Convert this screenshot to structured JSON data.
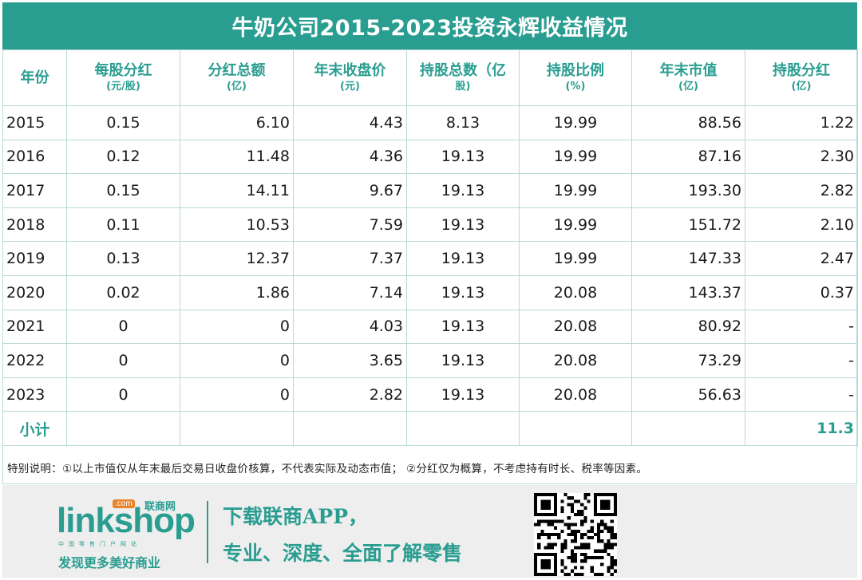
{
  "title": "牛奶公司2015-2023投资永辉收益情况",
  "headers": [
    {
      "main": "年份",
      "unit": ""
    },
    {
      "main": "每股分红",
      "unit": "(元/股)"
    },
    {
      "main": "分红总额",
      "unit": "(亿)"
    },
    {
      "main": "年末收盘价",
      "unit": "(元)"
    },
    {
      "main": "持股总数（亿",
      "unit": "股)"
    },
    {
      "main": "持股比例",
      "unit": "(%)"
    },
    {
      "main": "年末市值",
      "unit": "(亿)"
    },
    {
      "main": "持股分红",
      "unit": "(亿)"
    }
  ],
  "rows": [
    [
      "2015",
      "0.15",
      "6.10",
      "4.43",
      "8.13",
      "19.99",
      "88.56",
      "1.22"
    ],
    [
      "2016",
      "0.12",
      "11.48",
      "4.36",
      "19.13",
      "19.99",
      "87.16",
      "2.30"
    ],
    [
      "2017",
      "0.15",
      "14.11",
      "9.67",
      "19.13",
      "19.99",
      "193.30",
      "2.82"
    ],
    [
      "2018",
      "0.11",
      "10.53",
      "7.59",
      "19.13",
      "19.99",
      "151.72",
      "2.10"
    ],
    [
      "2019",
      "0.13",
      "12.37",
      "7.37",
      "19.13",
      "19.99",
      "147.33",
      "2.47"
    ],
    [
      "2020",
      "0.02",
      "1.86",
      "7.14",
      "19.13",
      "20.08",
      "143.37",
      "0.37"
    ],
    [
      "2021",
      "0",
      "0",
      "4.03",
      "19.13",
      "20.08",
      "80.92",
      "-"
    ],
    [
      "2022",
      "0",
      "0",
      "3.65",
      "19.13",
      "20.08",
      "73.29",
      "-"
    ],
    [
      "2023",
      "0",
      "0",
      "2.82",
      "19.13",
      "20.08",
      "56.63",
      "-"
    ]
  ],
  "subtotal": {
    "label": "小计",
    "value": "11.3"
  },
  "note": "特别说明：①以上市值仅从年末最后交易日收盘价核算，不代表实际及动态市值；  ②分红仅为概算，不考虑持有时长、税率等因素。",
  "footer": {
    "logo_text": "linkshop",
    "logo_com": ".com",
    "logo_cn": "联商网",
    "logo_sub": "中国零售门户网站",
    "slogan": "发现更多美好商业",
    "promo_line1": "下载联商APP，",
    "promo_line2": "专业、深度、全面了解零售"
  },
  "colors": {
    "accent": "#2a9d91",
    "logo_badge": "#e8842a"
  }
}
